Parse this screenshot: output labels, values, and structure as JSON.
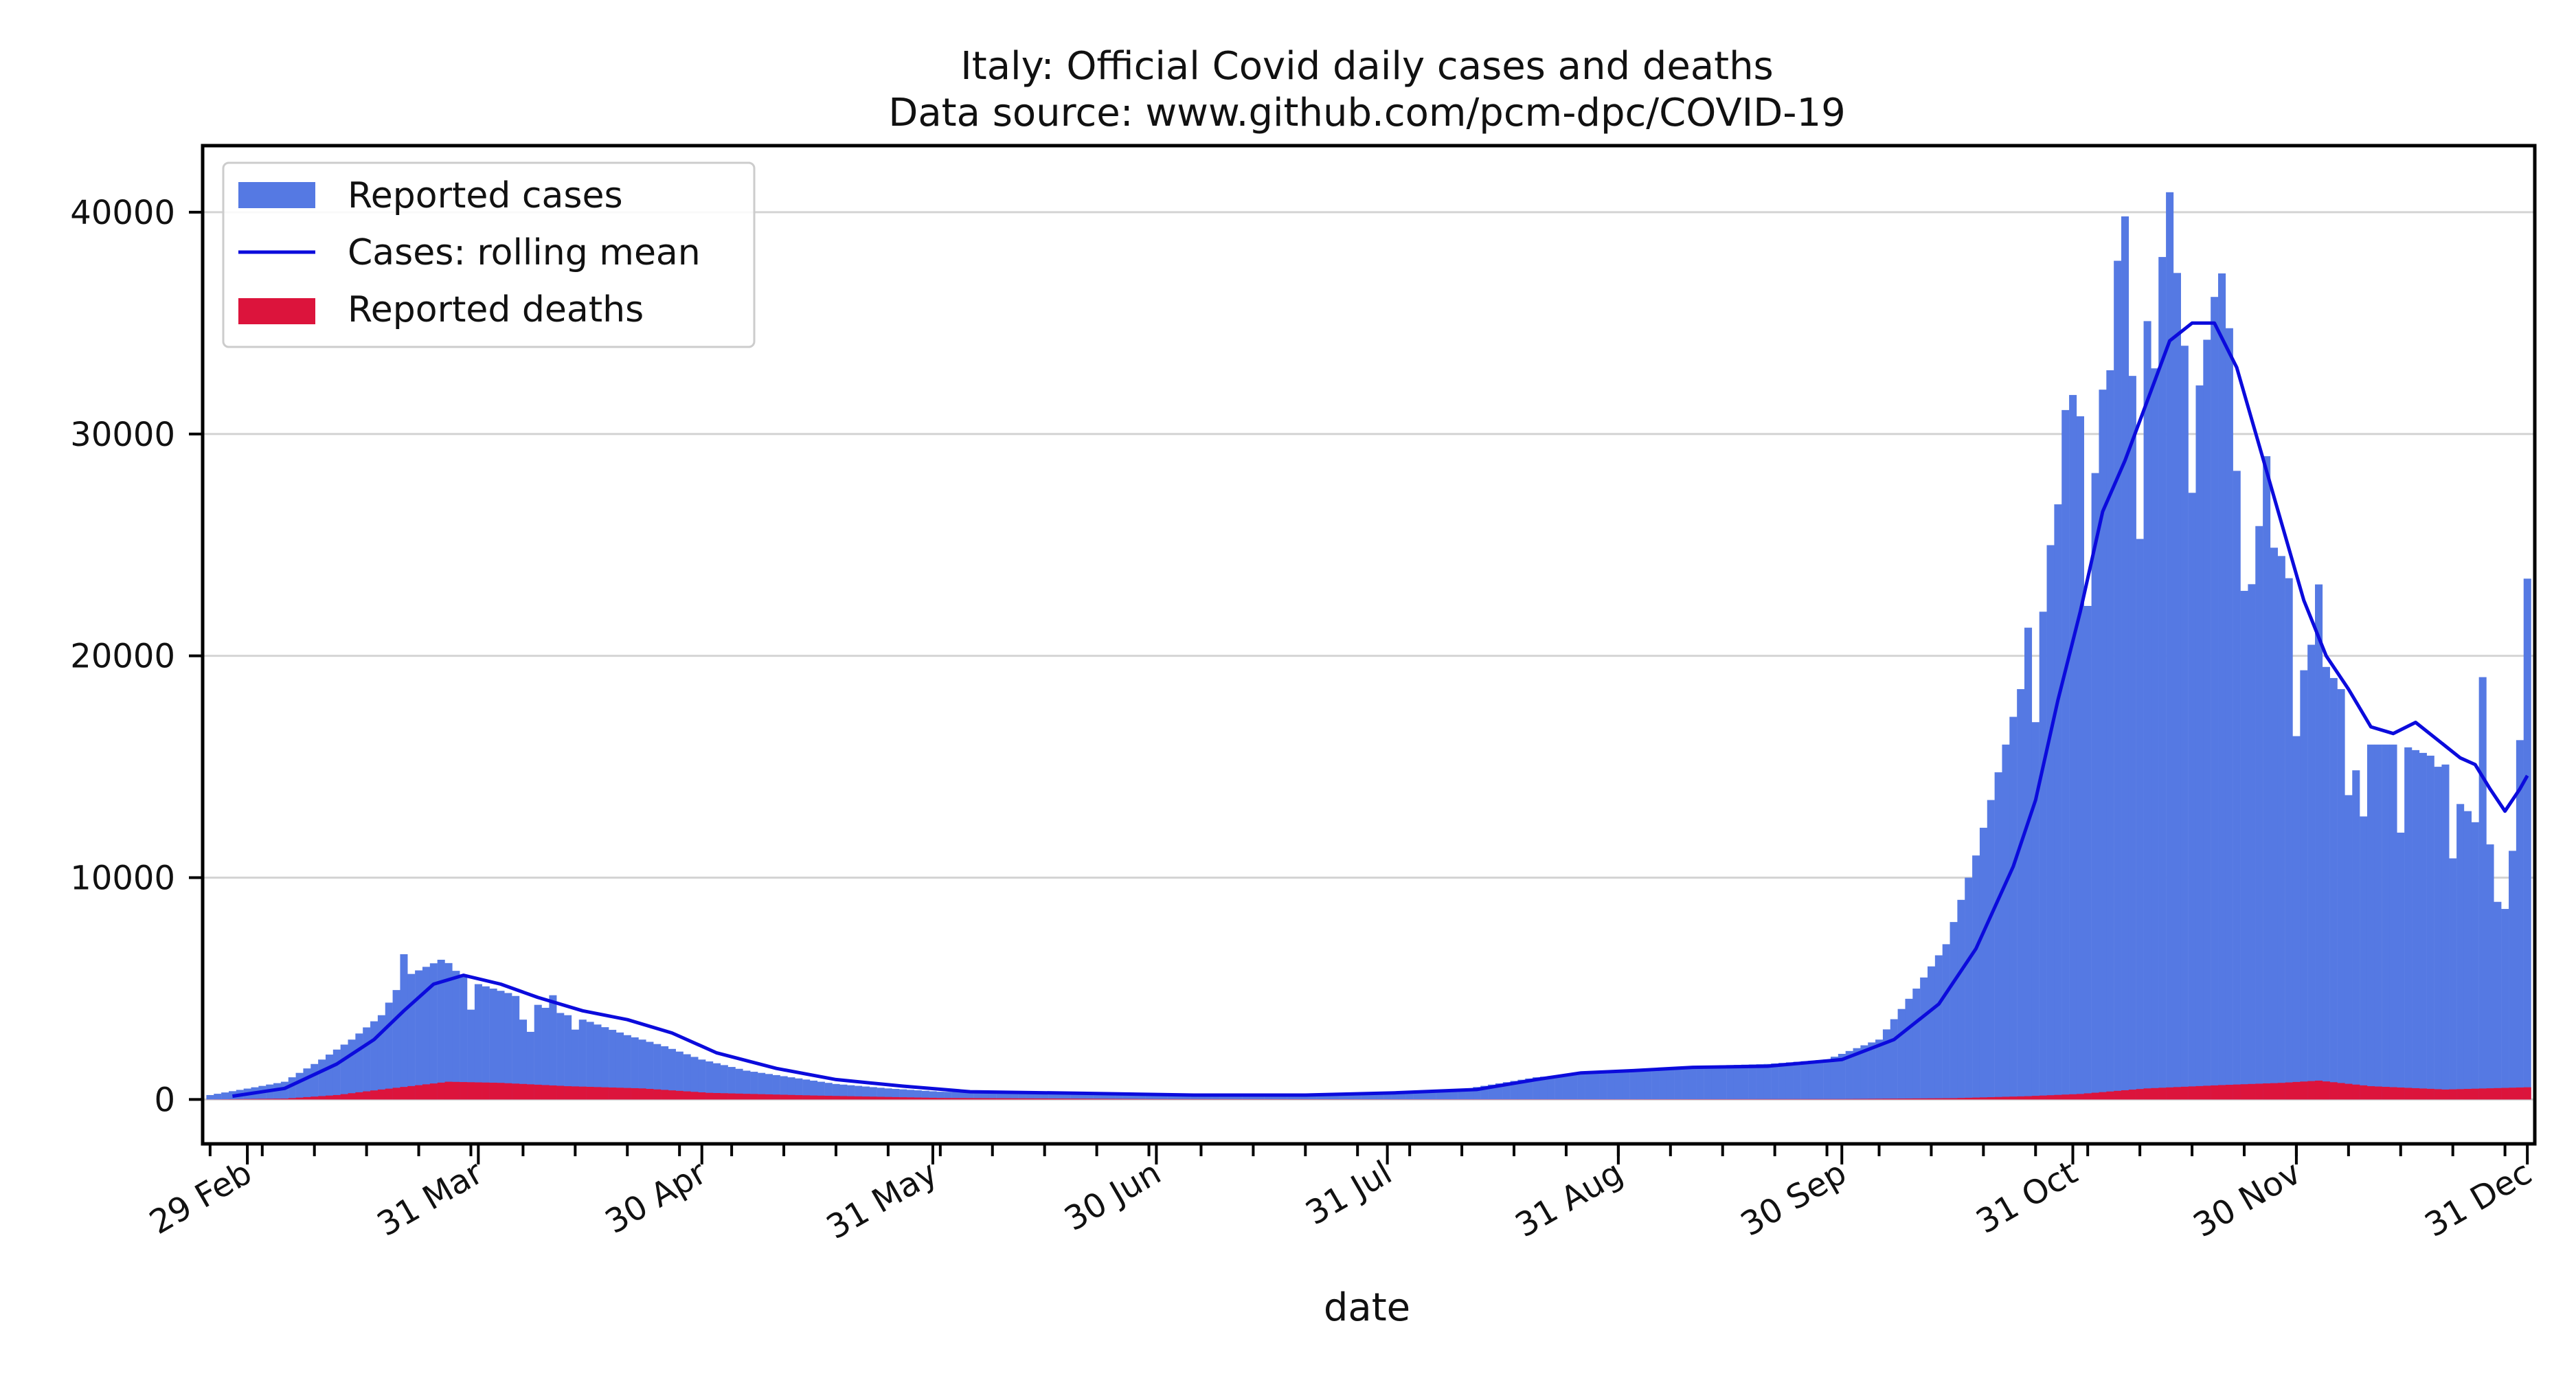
{
  "chart_data": {
    "type": "bar",
    "title": "Italy: Official Covid daily cases and deaths",
    "subtitle": "Data source: www.github.com/pcm-dpc/COVID-19",
    "xlabel": "date",
    "ylabel": "",
    "x_start": "2020-02-24",
    "x_end": "2020-12-31",
    "xlim": [
      "2020-02-23",
      "2021-01-01"
    ],
    "ylim": [
      -2000,
      43000
    ],
    "grid": "y",
    "legend_position": "upper-left",
    "y_ticks": [
      0,
      10000,
      20000,
      30000,
      40000
    ],
    "y_tick_labels": [
      "0",
      "10000",
      "20000",
      "30000",
      "40000"
    ],
    "x_ticks": [
      "2020-02-29",
      "2020-03-31",
      "2020-04-30",
      "2020-05-31",
      "2020-06-30",
      "2020-07-31",
      "2020-08-31",
      "2020-09-30",
      "2020-10-31",
      "2020-11-30",
      "2020-12-31"
    ],
    "x_tick_labels": [
      "29 Feb",
      "31 Mar",
      "30 Apr",
      "31 May",
      "30 Jun",
      "31 Jul",
      "31 Aug",
      "30 Sep",
      "31 Oct",
      "30 Nov",
      "31 Dec"
    ],
    "colors": {
      "cases": "#5579e3",
      "rolling_mean": "#0b0bdc",
      "deaths": "#dc143c",
      "grid": "#d4d4d4",
      "axis": "#000000"
    },
    "series": [
      {
        "name": "Reported cases",
        "kind": "bar",
        "keypoints": [
          [
            "2020-02-24",
            200
          ],
          [
            "2020-03-01",
            550
          ],
          [
            "2020-03-05",
            800
          ],
          [
            "2020-03-10",
            1800
          ],
          [
            "2020-03-14",
            2700
          ],
          [
            "2020-03-18",
            3800
          ],
          [
            "2020-03-21",
            5500
          ],
          [
            "2020-03-26",
            6300
          ],
          [
            "2020-03-30",
            5300
          ],
          [
            "2020-04-04",
            4800
          ],
          [
            "2020-04-10",
            4000
          ],
          [
            "2020-04-15",
            3500
          ],
          [
            "2020-04-20",
            2900
          ],
          [
            "2020-04-25",
            2400
          ],
          [
            "2020-04-30",
            1800
          ],
          [
            "2020-05-06",
            1300
          ],
          [
            "2020-05-12",
            1000
          ],
          [
            "2020-05-18",
            700
          ],
          [
            "2020-05-25",
            500
          ],
          [
            "2020-06-01",
            350
          ],
          [
            "2020-06-15",
            300
          ],
          [
            "2020-06-30",
            200
          ],
          [
            "2020-07-15",
            200
          ],
          [
            "2020-07-31",
            300
          ],
          [
            "2020-08-10",
            450
          ],
          [
            "2020-08-20",
            1000
          ],
          [
            "2020-08-31",
            1300
          ],
          [
            "2020-09-10",
            1500
          ],
          [
            "2020-09-20",
            1600
          ],
          [
            "2020-09-28",
            1800
          ],
          [
            "2020-10-05",
            2700
          ],
          [
            "2020-10-10",
            5000
          ],
          [
            "2020-10-14",
            7000
          ],
          [
            "2020-10-18",
            11000
          ],
          [
            "2020-10-22",
            16000
          ],
          [
            "2020-10-26",
            21000
          ],
          [
            "2020-10-30",
            30000
          ],
          [
            "2020-11-04",
            32000
          ],
          [
            "2020-11-08",
            35500
          ],
          [
            "2020-11-12",
            37000
          ],
          [
            "2020-11-16",
            34000
          ],
          [
            "2020-11-20",
            34500
          ],
          [
            "2020-11-24",
            26000
          ],
          [
            "2020-11-28",
            24500
          ],
          [
            "2020-12-02",
            20500
          ],
          [
            "2020-12-06",
            18500
          ],
          [
            "2020-12-10",
            16000
          ],
          [
            "2020-12-14",
            16000
          ],
          [
            "2020-12-18",
            15500
          ],
          [
            "2020-12-22",
            13500
          ],
          [
            "2020-12-26",
            11500
          ],
          [
            "2020-12-28",
            10000
          ],
          [
            "2020-12-30",
            23000
          ],
          [
            "2020-12-31",
            22500
          ]
        ],
        "overrides": [
          [
            "2020-03-21",
            6550
          ],
          [
            "2020-03-27",
            6150
          ],
          [
            "2020-03-30",
            4050
          ],
          [
            "2020-04-06",
            3600
          ],
          [
            "2020-04-07",
            3050
          ],
          [
            "2020-04-10",
            4700
          ],
          [
            "2020-04-13",
            3150
          ],
          [
            "2020-10-25",
            21270
          ],
          [
            "2020-10-26",
            17010
          ],
          [
            "2020-10-27",
            21990
          ],
          [
            "2020-10-28",
            24990
          ],
          [
            "2020-10-29",
            26830
          ],
          [
            "2020-10-30",
            31080
          ],
          [
            "2020-10-31",
            31760
          ],
          [
            "2020-11-02",
            22250
          ],
          [
            "2020-11-03",
            28240
          ],
          [
            "2020-11-06",
            37810
          ],
          [
            "2020-11-07",
            39810
          ],
          [
            "2020-11-08",
            32620
          ],
          [
            "2020-11-09",
            25270
          ],
          [
            "2020-11-10",
            35090
          ],
          [
            "2020-11-11",
            32960
          ],
          [
            "2020-11-12",
            37980
          ],
          [
            "2020-11-13",
            40900
          ],
          [
            "2020-11-14",
            37260
          ],
          [
            "2020-11-15",
            33980
          ],
          [
            "2020-11-16",
            27350
          ],
          [
            "2020-11-17",
            32190
          ],
          [
            "2020-11-19",
            36180
          ],
          [
            "2020-11-20",
            37240
          ],
          [
            "2020-11-21",
            34770
          ],
          [
            "2020-11-22",
            28340
          ],
          [
            "2020-11-23",
            22930
          ],
          [
            "2020-11-24",
            23230
          ],
          [
            "2020-11-25",
            25850
          ],
          [
            "2020-11-26",
            29000
          ],
          [
            "2020-11-30",
            16380
          ],
          [
            "2020-12-01",
            19350
          ],
          [
            "2020-12-03",
            23220
          ],
          [
            "2020-12-07",
            13720
          ],
          [
            "2020-12-08",
            14840
          ],
          [
            "2020-12-09",
            12760
          ],
          [
            "2020-12-14",
            12030
          ],
          [
            "2020-12-20",
            15100
          ],
          [
            "2020-12-21",
            10870
          ],
          [
            "2020-12-22",
            13320
          ],
          [
            "2020-12-25",
            19040
          ],
          [
            "2020-12-27",
            8910
          ],
          [
            "2020-12-28",
            8590
          ],
          [
            "2020-12-29",
            11210
          ],
          [
            "2020-12-30",
            16200
          ],
          [
            "2020-12-31",
            23480
          ]
        ]
      },
      {
        "name": "Cases: rolling mean",
        "kind": "line",
        "keypoints": [
          [
            "2020-02-27",
            150
          ],
          [
            "2020-03-05",
            500
          ],
          [
            "2020-03-12",
            1600
          ],
          [
            "2020-03-17",
            2700
          ],
          [
            "2020-03-21",
            4000
          ],
          [
            "2020-03-25",
            5200
          ],
          [
            "2020-03-29",
            5600
          ],
          [
            "2020-04-03",
            5200
          ],
          [
            "2020-04-08",
            4600
          ],
          [
            "2020-04-14",
            4000
          ],
          [
            "2020-04-20",
            3600
          ],
          [
            "2020-04-26",
            3000
          ],
          [
            "2020-05-02",
            2100
          ],
          [
            "2020-05-10",
            1400
          ],
          [
            "2020-05-18",
            900
          ],
          [
            "2020-05-27",
            600
          ],
          [
            "2020-06-05",
            350
          ],
          [
            "2020-06-20",
            280
          ],
          [
            "2020-07-05",
            200
          ],
          [
            "2020-07-20",
            200
          ],
          [
            "2020-08-01",
            300
          ],
          [
            "2020-08-12",
            450
          ],
          [
            "2020-08-20",
            900
          ],
          [
            "2020-08-26",
            1200
          ],
          [
            "2020-09-02",
            1300
          ],
          [
            "2020-09-10",
            1450
          ],
          [
            "2020-09-20",
            1500
          ],
          [
            "2020-09-30",
            1800
          ],
          [
            "2020-10-07",
            2700
          ],
          [
            "2020-10-13",
            4300
          ],
          [
            "2020-10-18",
            6800
          ],
          [
            "2020-10-23",
            10500
          ],
          [
            "2020-10-26",
            13500
          ],
          [
            "2020-10-29",
            18000
          ],
          [
            "2020-11-01",
            22000
          ],
          [
            "2020-11-04",
            26500
          ],
          [
            "2020-11-07",
            28800
          ],
          [
            "2020-11-10",
            31500
          ],
          [
            "2020-11-13",
            34200
          ],
          [
            "2020-11-16",
            35000
          ],
          [
            "2020-11-19",
            35000
          ],
          [
            "2020-11-22",
            33000
          ],
          [
            "2020-11-25",
            29500
          ],
          [
            "2020-11-28",
            26000
          ],
          [
            "2020-12-01",
            22500
          ],
          [
            "2020-12-04",
            20000
          ],
          [
            "2020-12-07",
            18500
          ],
          [
            "2020-12-10",
            16800
          ],
          [
            "2020-12-13",
            16500
          ],
          [
            "2020-12-16",
            17000
          ],
          [
            "2020-12-19",
            16200
          ],
          [
            "2020-12-22",
            15400
          ],
          [
            "2020-12-24",
            15100
          ],
          [
            "2020-12-26",
            14000
          ],
          [
            "2020-12-28",
            13000
          ],
          [
            "2020-12-30",
            14000
          ],
          [
            "2020-12-31",
            14600
          ]
        ]
      },
      {
        "name": "Reported deaths",
        "kind": "bar",
        "keypoints": [
          [
            "2020-02-24",
            5
          ],
          [
            "2020-03-05",
            40
          ],
          [
            "2020-03-12",
            200
          ],
          [
            "2020-03-18",
            450
          ],
          [
            "2020-03-27",
            800
          ],
          [
            "2020-04-03",
            750
          ],
          [
            "2020-04-12",
            600
          ],
          [
            "2020-04-22",
            500
          ],
          [
            "2020-05-01",
            300
          ],
          [
            "2020-05-15",
            180
          ],
          [
            "2020-06-01",
            70
          ],
          [
            "2020-06-30",
            20
          ],
          [
            "2020-07-31",
            10
          ],
          [
            "2020-08-31",
            10
          ],
          [
            "2020-09-30",
            20
          ],
          [
            "2020-10-15",
            60
          ],
          [
            "2020-10-25",
            150
          ],
          [
            "2020-11-01",
            250
          ],
          [
            "2020-11-10",
            500
          ],
          [
            "2020-11-20",
            650
          ],
          [
            "2020-11-28",
            750
          ],
          [
            "2020-12-03",
            850
          ],
          [
            "2020-12-10",
            600
          ],
          [
            "2020-12-20",
            450
          ],
          [
            "2020-12-31",
            550
          ]
        ]
      }
    ]
  }
}
